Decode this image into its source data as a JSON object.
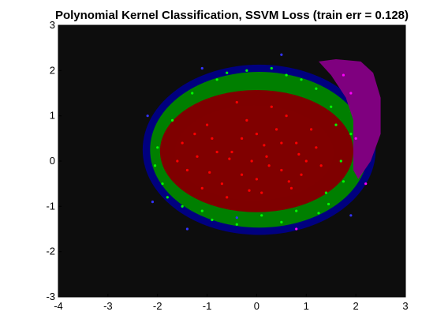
{
  "chart_data": {
    "type": "scatter",
    "title": "Polynomial Kernel Classification, SSVM Loss (train err = 0.128)",
    "xlabel": "",
    "ylabel": "",
    "xlim": [
      -4,
      3
    ],
    "ylim": [
      -3,
      3
    ],
    "xticks": [
      -4,
      -3,
      -2,
      -1,
      0,
      1,
      2,
      3
    ],
    "yticks": [
      -3,
      -2,
      -1,
      0,
      1,
      2,
      3
    ],
    "grid": false,
    "legend": "none",
    "background_color": "#0d0d0d",
    "decision_regions": [
      {
        "class": "blue",
        "color": "#00007f",
        "center": [
          0.05,
          0.25
        ],
        "radii": [
          2.35,
          1.88
        ]
      },
      {
        "class": "green",
        "color": "#007f00",
        "center": [
          0.05,
          0.25
        ],
        "radii": [
          2.2,
          1.72
        ]
      },
      {
        "class": "red",
        "color": "#7f0000",
        "center": [
          0.0,
          0.22
        ],
        "radii": [
          1.95,
          1.35
        ]
      },
      {
        "class": "red-inner",
        "color": "#800000",
        "center": [
          -0.05,
          0.18
        ],
        "radii": [
          1.6,
          1.05
        ]
      }
    ],
    "magenta_region": {
      "color": "#7f007f",
      "polygon": [
        [
          1.25,
          2.2
        ],
        [
          1.6,
          2.25
        ],
        [
          2.1,
          2.2
        ],
        [
          2.35,
          1.95
        ],
        [
          2.5,
          1.4
        ],
        [
          2.5,
          0.6
        ],
        [
          2.3,
          0.0
        ],
        [
          2.05,
          -0.4
        ],
        [
          1.95,
          -0.2
        ],
        [
          1.95,
          0.9
        ],
        [
          1.8,
          1.4
        ],
        [
          1.5,
          1.9
        ]
      ]
    },
    "series": [
      {
        "color": "#ff0000",
        "points": [
          [
            -1.2,
            0.1
          ],
          [
            -0.9,
            0.5
          ],
          [
            -0.5,
            0.2
          ],
          [
            -0.3,
            -0.3
          ],
          [
            0.0,
            0.6
          ],
          [
            0.2,
            0.1
          ],
          [
            0.5,
            -0.2
          ],
          [
            0.8,
            0.4
          ],
          [
            1.0,
            0.0
          ],
          [
            -0.7,
            -0.5
          ],
          [
            -1.4,
            -0.2
          ],
          [
            -0.2,
            0.9
          ],
          [
            0.4,
            0.7
          ],
          [
            0.7,
            -0.6
          ],
          [
            -1.0,
            0.8
          ],
          [
            -0.6,
            -0.8
          ],
          [
            0.1,
            -0.7
          ],
          [
            1.2,
            0.3
          ],
          [
            -1.5,
            0.4
          ],
          [
            0.3,
            1.2
          ],
          [
            -0.4,
            1.3
          ],
          [
            0.6,
            1.0
          ],
          [
            0.9,
            -0.3
          ],
          [
            -0.1,
            0.0
          ],
          [
            -0.8,
            0.2
          ],
          [
            0.0,
            -0.4
          ],
          [
            0.5,
            0.4
          ],
          [
            -1.1,
            -0.6
          ],
          [
            1.1,
            0.7
          ],
          [
            -0.3,
            0.5
          ],
          [
            0.25,
            -0.1
          ],
          [
            -0.55,
            0.05
          ],
          [
            0.85,
            0.15
          ],
          [
            -1.25,
            0.6
          ],
          [
            0.15,
            0.35
          ],
          [
            -0.15,
            -0.65
          ],
          [
            0.65,
            -0.45
          ],
          [
            -0.95,
            -0.25
          ],
          [
            1.3,
            -0.1
          ],
          [
            -1.6,
            0.0
          ]
        ]
      },
      {
        "color": "#00ff00",
        "points": [
          [
            -1.7,
            0.9
          ],
          [
            -1.9,
            -0.5
          ],
          [
            -1.5,
            -1.0
          ],
          [
            -0.9,
            -1.3
          ],
          [
            0.1,
            -1.2
          ],
          [
            0.8,
            -1.1
          ],
          [
            1.4,
            -0.7
          ],
          [
            1.7,
            0.0
          ],
          [
            1.6,
            0.8
          ],
          [
            1.2,
            1.6
          ],
          [
            0.6,
            1.9
          ],
          [
            -0.2,
            2.0
          ],
          [
            -0.8,
            1.8
          ],
          [
            -1.3,
            1.5
          ],
          [
            -2.0,
            0.3
          ],
          [
            1.9,
            0.6
          ],
          [
            -0.4,
            -1.4
          ],
          [
            0.5,
            -1.35
          ],
          [
            1.5,
            1.2
          ],
          [
            -1.1,
            -1.1
          ],
          [
            1.75,
            -0.45
          ],
          [
            0.9,
            1.8
          ],
          [
            -1.8,
            -0.8
          ],
          [
            0.3,
            2.05
          ],
          [
            -0.6,
            1.95
          ],
          [
            1.45,
            -0.95
          ],
          [
            -2.05,
            -0.1
          ],
          [
            1.25,
            -1.15
          ]
        ]
      },
      {
        "color": "#3333ff",
        "points": [
          [
            -2.2,
            1.0
          ],
          [
            -2.1,
            -0.9
          ],
          [
            -1.4,
            -1.5
          ],
          [
            0.5,
            2.35
          ],
          [
            -0.4,
            -1.25
          ],
          [
            1.9,
            -1.2
          ],
          [
            -1.1,
            2.05
          ]
        ]
      },
      {
        "color": "#ff00ff",
        "points": [
          [
            2.0,
            0.5
          ],
          [
            1.9,
            1.5
          ],
          [
            2.2,
            -0.5
          ],
          [
            0.8,
            -1.5
          ],
          [
            1.75,
            1.9
          ]
        ]
      }
    ]
  }
}
